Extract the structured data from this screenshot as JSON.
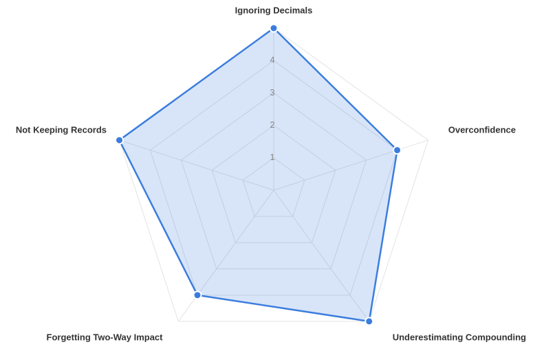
{
  "chart_data": {
    "type": "radar",
    "categories": [
      "Ignoring Decimals",
      "Overconfidence",
      "Underestimating Compounding",
      "Forgetting Two-Way Impact",
      "Not Keeping Records"
    ],
    "values": [
      5,
      4,
      5,
      4,
      5
    ],
    "color": "#3b7ddd",
    "rlim": [
      0,
      5
    ],
    "rticks": [
      1,
      2,
      3,
      4
    ],
    "grid": true
  }
}
